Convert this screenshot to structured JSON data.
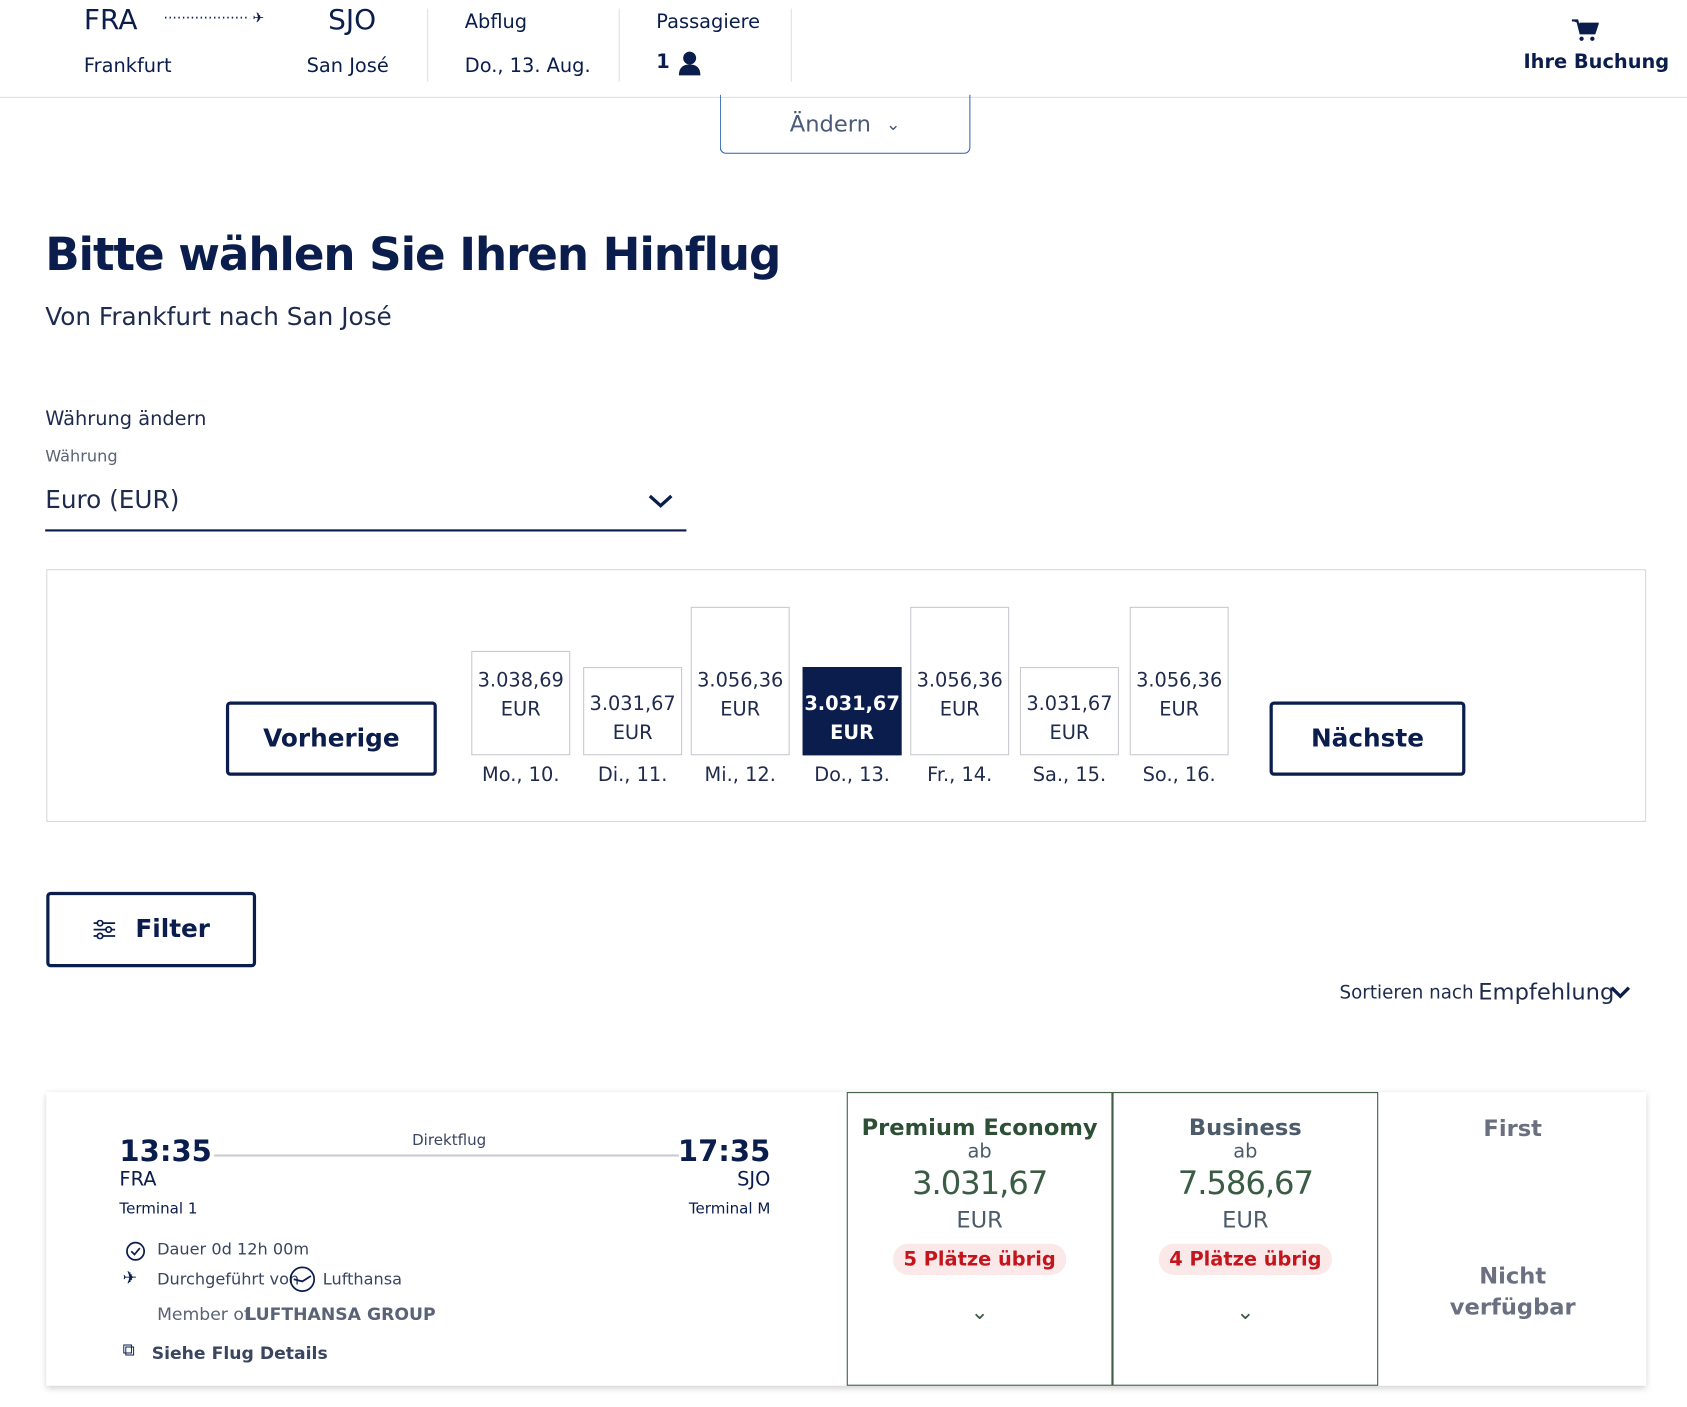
{
  "header": {
    "origin_code": "FRA",
    "origin_city": "Frankfurt",
    "dest_code": "SJO",
    "dest_city": "San José",
    "departure_label": "Abflug",
    "departure_date": "Do., 13. Aug.",
    "passengers_label": "Passagiere",
    "passengers_count": "1",
    "booking": "Ihre Buchung"
  },
  "change_button": "Ändern",
  "heading": {
    "title": "Bitte wählen Sie Ihren Hinflug",
    "subtitle": "Von Frankfurt nach San José"
  },
  "currency": {
    "label": "Währung ändern",
    "field_label": "Währung",
    "value": "Euro (EUR)"
  },
  "calendar": {
    "previous": "Vorherige",
    "next": "Nächste",
    "days": [
      {
        "price": "3.038,69",
        "currency": "EUR",
        "day": "Mo., 10."
      },
      {
        "price": "3.031,67",
        "currency": "EUR",
        "day": "Di., 11."
      },
      {
        "price": "3.056,36",
        "currency": "EUR",
        "day": "Mi., 12."
      },
      {
        "price": "3.031,67",
        "currency": "EUR",
        "day": "Do., 13."
      },
      {
        "price": "3.056,36",
        "currency": "EUR",
        "day": "Fr., 14."
      },
      {
        "price": "3.031,67",
        "currency": "EUR",
        "day": "Sa., 15."
      },
      {
        "price": "3.056,36",
        "currency": "EUR",
        "day": "So., 16."
      }
    ]
  },
  "filter": "Filter",
  "sort": {
    "label": "Sortieren nach",
    "value": "Empfehlung"
  },
  "flight": {
    "dep_time": "13:35",
    "dep_airport": "FRA",
    "dep_terminal": "Terminal 1",
    "type": "Direktflug",
    "arr_time": "17:35",
    "arr_airport": "SJO",
    "arr_terminal": "Terminal M",
    "duration": "Dauer 0d 12h 00m",
    "operated": "Durchgeführt von",
    "airline": "Lufthansa",
    "member": "Member of",
    "group": "LUFTHANSA GROUP",
    "details": "Siehe Flug Details"
  },
  "fares": [
    {
      "cabin": "Premium Economy",
      "from": "ab",
      "price": "3.031,67",
      "currency": "EUR",
      "seats": "5 Plätze übrig"
    },
    {
      "cabin": "Business",
      "from": "ab",
      "price": "7.586,67",
      "currency": "EUR",
      "seats": "4 Plätze übrig"
    }
  ],
  "first": {
    "cabin": "First",
    "status": "Nicht verfügbar"
  }
}
